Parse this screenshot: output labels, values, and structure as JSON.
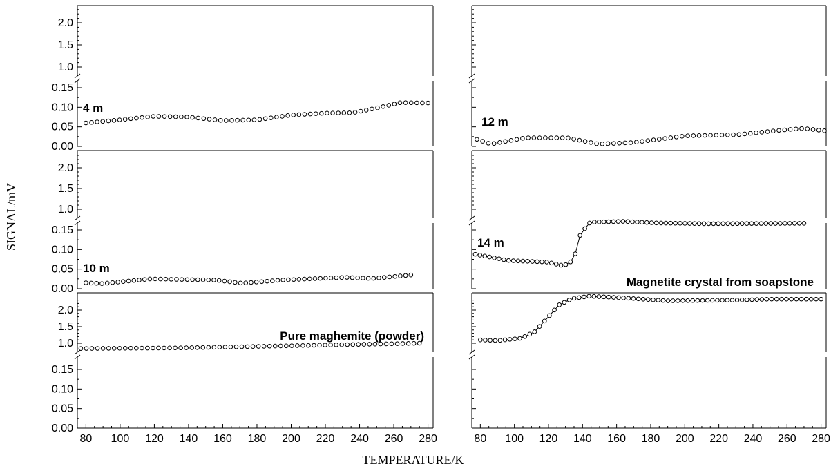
{
  "figure": {
    "xlabel": "TEMPERATURE/K",
    "ylabel": "SIGNAL/mV"
  },
  "chart_data": [
    {
      "type": "scatter",
      "title": "4 m",
      "xlim": [
        75,
        283
      ],
      "y_ticks_upper": [
        "1.0",
        "1.5",
        "2.0"
      ],
      "y_ticks_lower": [
        "0.00",
        "0.05",
        "0.10",
        "0.15"
      ],
      "y_axis_break": true,
      "connected": false,
      "series": [
        {
          "x": [
            80,
            280
          ],
          "y": [
            0.06,
            0.11
          ],
          "shape": [
            [
              0.0,
              0.06
            ],
            [
              0.1,
              0.068
            ],
            [
              0.2,
              0.077
            ],
            [
              0.3,
              0.075
            ],
            [
              0.4,
              0.066
            ],
            [
              0.5,
              0.068
            ],
            [
              0.6,
              0.08
            ],
            [
              0.7,
              0.085
            ],
            [
              0.78,
              0.086
            ],
            [
              0.85,
              0.098
            ],
            [
              0.92,
              0.112
            ],
            [
              1.0,
              0.111
            ]
          ]
        }
      ]
    },
    {
      "type": "scatter",
      "title": "12 m",
      "xlim": [
        75,
        283
      ],
      "y_ticks_upper": [],
      "y_ticks_lower": [],
      "y_axis_break": true,
      "connected": false,
      "series": [
        {
          "x": [
            78,
            282
          ],
          "y": [
            0.018,
            0.04
          ],
          "shape": [
            [
              0.0,
              0.018
            ],
            [
              0.04,
              0.006
            ],
            [
              0.14,
              0.022
            ],
            [
              0.26,
              0.022
            ],
            [
              0.35,
              0.006
            ],
            [
              0.45,
              0.01
            ],
            [
              0.6,
              0.027
            ],
            [
              0.75,
              0.03
            ],
            [
              0.88,
              0.042
            ],
            [
              0.94,
              0.046
            ],
            [
              1.0,
              0.04
            ]
          ]
        }
      ]
    },
    {
      "type": "scatter",
      "title": "10 m",
      "xlim": [
        75,
        283
      ],
      "y_ticks_upper": [
        "1.0",
        "1.5",
        "2.0"
      ],
      "y_ticks_lower": [
        "0.00",
        "0.05",
        "0.10",
        "0.15"
      ],
      "y_axis_break": true,
      "connected": false,
      "series": [
        {
          "x": [
            80,
            270
          ],
          "y": [
            0.015,
            0.035
          ],
          "shape": [
            [
              0.0,
              0.015
            ],
            [
              0.05,
              0.013
            ],
            [
              0.2,
              0.025
            ],
            [
              0.4,
              0.022
            ],
            [
              0.48,
              0.014
            ],
            [
              0.6,
              0.022
            ],
            [
              0.8,
              0.029
            ],
            [
              0.88,
              0.026
            ],
            [
              1.0,
              0.035
            ]
          ]
        }
      ]
    },
    {
      "type": "line",
      "title": "14 m",
      "xlim": [
        75,
        283
      ],
      "y_ticks_upper": [],
      "y_ticks_lower": [],
      "y_axis_break": true,
      "connected": true,
      "series": [
        {
          "x": [
            77,
            270
          ],
          "y": [
            0.088,
            0.166
          ],
          "shape": [
            [
              0.0,
              0.088
            ],
            [
              0.1,
              0.072
            ],
            [
              0.22,
              0.068
            ],
            [
              0.26,
              0.06
            ],
            [
              0.28,
              0.062
            ],
            [
              0.3,
              0.075
            ],
            [
              0.32,
              0.14
            ],
            [
              0.35,
              0.17
            ],
            [
              0.45,
              0.172
            ],
            [
              0.55,
              0.168
            ],
            [
              0.7,
              0.166
            ],
            [
              1.0,
              0.167
            ]
          ]
        }
      ]
    },
    {
      "type": "scatter",
      "title": "Pure maghemite (powder)",
      "xlim": [
        75,
        283
      ],
      "y_ticks_upper": [
        "1.0",
        "1.5",
        "2.0"
      ],
      "y_ticks_lower": [
        "0.00",
        "0.05",
        "0.10",
        "0.15"
      ],
      "y_axis_break": true,
      "connected": false,
      "series": [
        {
          "x": [
            77,
            275
          ],
          "y": [
            0.84,
            1.0
          ],
          "shape": [
            [
              0.0,
              0.84
            ],
            [
              0.3,
              0.86
            ],
            [
              0.6,
              0.92
            ],
            [
              1.0,
              1.0
            ]
          ]
        }
      ]
    },
    {
      "type": "line",
      "title": "Magnetite crystal from soapstone",
      "xlim": [
        75,
        283
      ],
      "y_ticks_upper": [],
      "y_ticks_lower": [],
      "y_axis_break": true,
      "connected": true,
      "series": [
        {
          "x": [
            80,
            280
          ],
          "y": [
            1.1,
            2.33
          ],
          "shape": [
            [
              0.0,
              1.1
            ],
            [
              0.05,
              1.08
            ],
            [
              0.12,
              1.15
            ],
            [
              0.16,
              1.35
            ],
            [
              0.2,
              1.8
            ],
            [
              0.23,
              2.15
            ],
            [
              0.27,
              2.35
            ],
            [
              0.32,
              2.42
            ],
            [
              0.4,
              2.38
            ],
            [
              0.55,
              2.28
            ],
            [
              0.75,
              2.3
            ],
            [
              0.85,
              2.33
            ],
            [
              1.0,
              2.33
            ]
          ]
        }
      ]
    }
  ],
  "x_ticks": [
    "80",
    "100",
    "120",
    "140",
    "160",
    "180",
    "200",
    "220",
    "240",
    "260",
    "280"
  ]
}
